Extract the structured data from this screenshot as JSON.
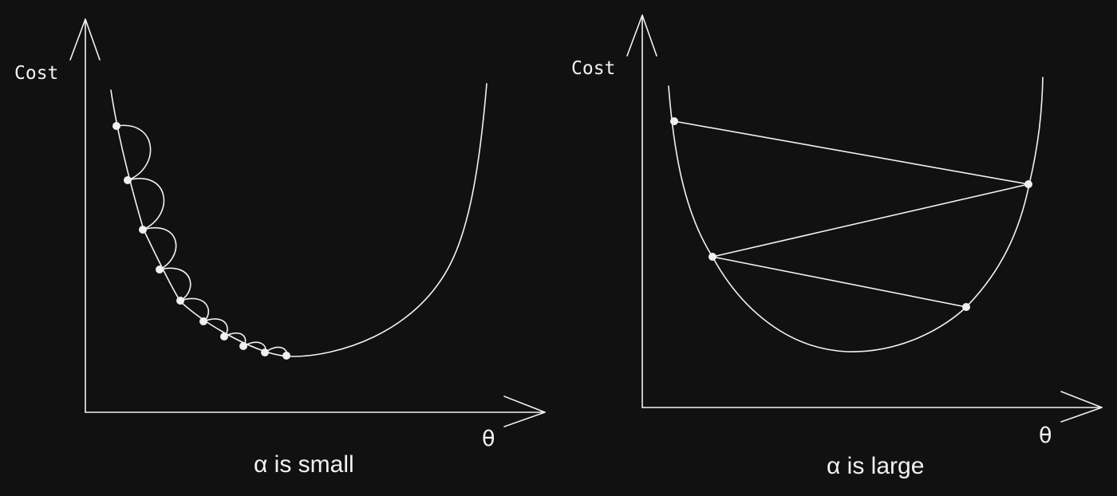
{
  "panels": [
    {
      "y_label": "Cost",
      "x_label": "θ",
      "caption": "α is small"
    },
    {
      "y_label": "Cost",
      "x_label": "θ",
      "caption": "α is large"
    }
  ],
  "colors": {
    "background": "#111111",
    "stroke": "#f2f2f2"
  }
}
